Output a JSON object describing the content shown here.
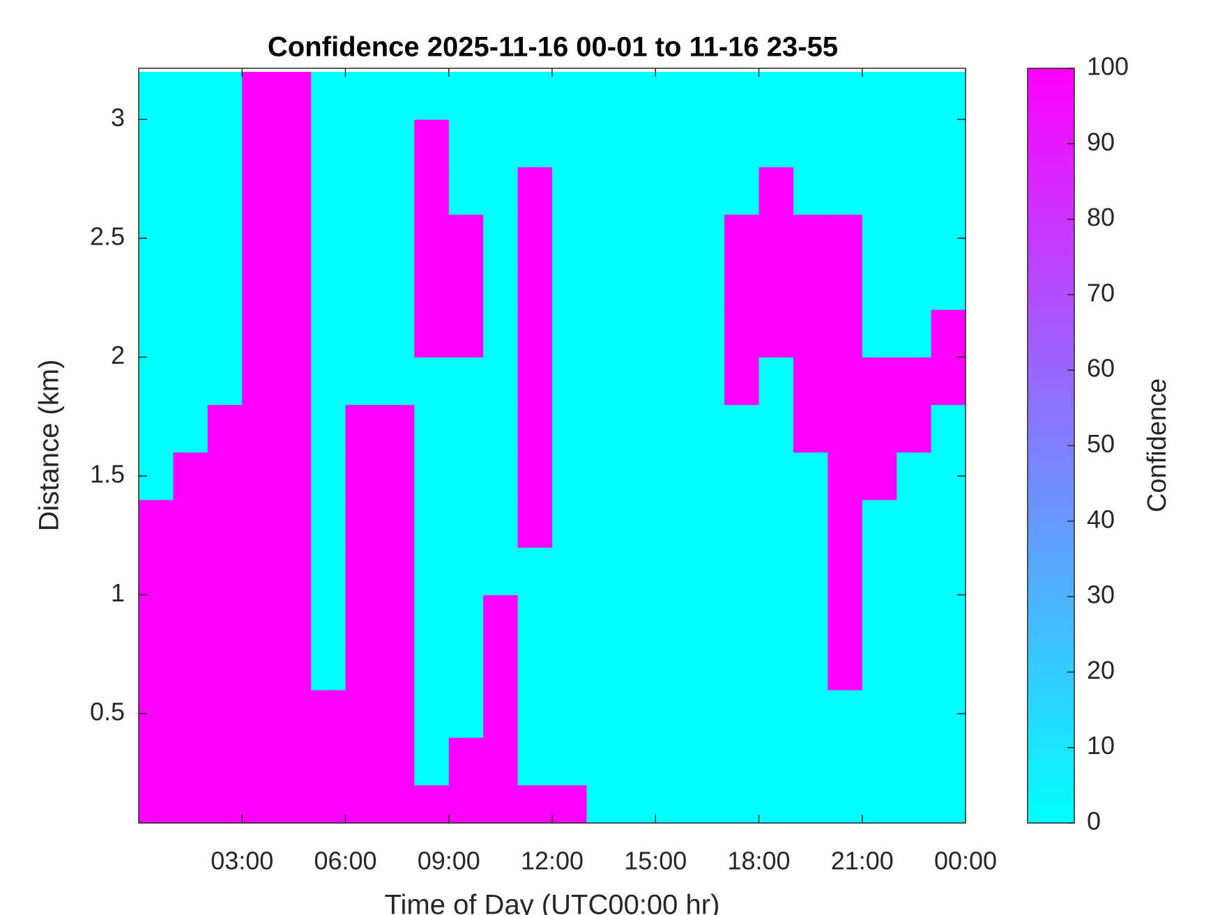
{
  "chart_data": {
    "type": "heatmap",
    "title": "Confidence 2025-11-16 00-01 to 11-16 23-55",
    "xlabel": "Time of Day (UTC00:00 hr)",
    "ylabel": "Distance (km)",
    "xlim": [
      0,
      24
    ],
    "xticks": [
      {
        "value": 3,
        "label": "03:00"
      },
      {
        "value": 6,
        "label": "06:00"
      },
      {
        "value": 9,
        "label": "09:00"
      },
      {
        "value": 12,
        "label": "12:00"
      },
      {
        "value": 15,
        "label": "15:00"
      },
      {
        "value": 18,
        "label": "18:00"
      },
      {
        "value": 21,
        "label": "21:00"
      },
      {
        "value": 24,
        "label": "00:00"
      }
    ],
    "ylim": [
      0.04,
      3.215
    ],
    "yticks": [
      0.5,
      1,
      1.5,
      2,
      2.5,
      3
    ],
    "xbins": [
      0,
      1,
      2,
      3,
      4,
      5,
      6,
      7,
      8,
      9,
      10,
      11,
      12,
      13,
      14,
      15,
      16,
      17,
      18,
      19,
      20,
      21,
      22,
      23,
      24
    ],
    "ybins": [
      0,
      0.2,
      0.4,
      0.6,
      0.8,
      1,
      1.2,
      1.4,
      1.6,
      1.8,
      2,
      2.2,
      2.4,
      2.6,
      2.8,
      3,
      3.2
    ],
    "z": [
      [
        100,
        100,
        100,
        100,
        100,
        100,
        100,
        100,
        100,
        100,
        100,
        100,
        100,
        0,
        0,
        0,
        0,
        0,
        0,
        0,
        0,
        0,
        0,
        0
      ],
      [
        100,
        100,
        100,
        100,
        100,
        100,
        100,
        100,
        0,
        100,
        100,
        0,
        0,
        0,
        0,
        0,
        0,
        0,
        0,
        0,
        0,
        0,
        0,
        0
      ],
      [
        100,
        100,
        100,
        100,
        100,
        100,
        100,
        100,
        0,
        0,
        100,
        0,
        0,
        0,
        0,
        0,
        0,
        0,
        0,
        0,
        0,
        0,
        0,
        0
      ],
      [
        100,
        100,
        100,
        100,
        100,
        0,
        100,
        100,
        0,
        0,
        100,
        0,
        0,
        0,
        0,
        0,
        0,
        0,
        0,
        0,
        100,
        0,
        0,
        0
      ],
      [
        100,
        100,
        100,
        100,
        100,
        0,
        100,
        100,
        0,
        0,
        100,
        0,
        0,
        0,
        0,
        0,
        0,
        0,
        0,
        0,
        100,
        0,
        0,
        0
      ],
      [
        100,
        100,
        100,
        100,
        100,
        0,
        100,
        100,
        0,
        0,
        0,
        0,
        0,
        0,
        0,
        0,
        0,
        0,
        0,
        0,
        100,
        0,
        0,
        0
      ],
      [
        100,
        100,
        100,
        100,
        100,
        0,
        100,
        100,
        0,
        0,
        0,
        100,
        0,
        0,
        0,
        0,
        0,
        0,
        0,
        0,
        100,
        0,
        0,
        0
      ],
      [
        0,
        100,
        100,
        100,
        100,
        0,
        100,
        100,
        0,
        0,
        0,
        100,
        0,
        0,
        0,
        0,
        0,
        0,
        0,
        0,
        100,
        100,
        0,
        0
      ],
      [
        0,
        0,
        100,
        100,
        100,
        0,
        100,
        100,
        0,
        0,
        0,
        100,
        0,
        0,
        0,
        0,
        0,
        0,
        0,
        100,
        100,
        100,
        100,
        0
      ],
      [
        0,
        0,
        0,
        100,
        100,
        0,
        0,
        0,
        0,
        0,
        0,
        100,
        0,
        0,
        0,
        0,
        0,
        100,
        0,
        100,
        100,
        100,
        100,
        100
      ],
      [
        0,
        0,
        0,
        100,
        100,
        0,
        0,
        0,
        100,
        100,
        0,
        100,
        0,
        0,
        0,
        0,
        0,
        100,
        100,
        100,
        100,
        0,
        0,
        100
      ],
      [
        0,
        0,
        0,
        100,
        100,
        0,
        0,
        0,
        100,
        100,
        0,
        100,
        0,
        0,
        0,
        0,
        0,
        100,
        100,
        100,
        100,
        0,
        0,
        0
      ],
      [
        0,
        0,
        0,
        100,
        100,
        0,
        0,
        0,
        100,
        100,
        0,
        100,
        0,
        0,
        0,
        0,
        0,
        100,
        100,
        100,
        100,
        0,
        0,
        0
      ],
      [
        0,
        0,
        0,
        100,
        100,
        0,
        0,
        0,
        100,
        0,
        0,
        100,
        0,
        0,
        0,
        0,
        0,
        0,
        100,
        0,
        0,
        0,
        0,
        0
      ],
      [
        0,
        0,
        0,
        100,
        100,
        0,
        0,
        0,
        100,
        0,
        0,
        0,
        0,
        0,
        0,
        0,
        0,
        0,
        0,
        0,
        0,
        0,
        0,
        0
      ],
      [
        0,
        0,
        0,
        100,
        100,
        0,
        0,
        0,
        0,
        0,
        0,
        0,
        0,
        0,
        0,
        0,
        0,
        0,
        0,
        0,
        0,
        0,
        0,
        0
      ]
    ],
    "colormap": [
      "#00ffff",
      "#ff00ff"
    ],
    "clim": [
      0,
      100
    ],
    "cticks": [
      0,
      10,
      20,
      30,
      40,
      50,
      60,
      70,
      80,
      90,
      100
    ],
    "clabel": "Confidence"
  }
}
